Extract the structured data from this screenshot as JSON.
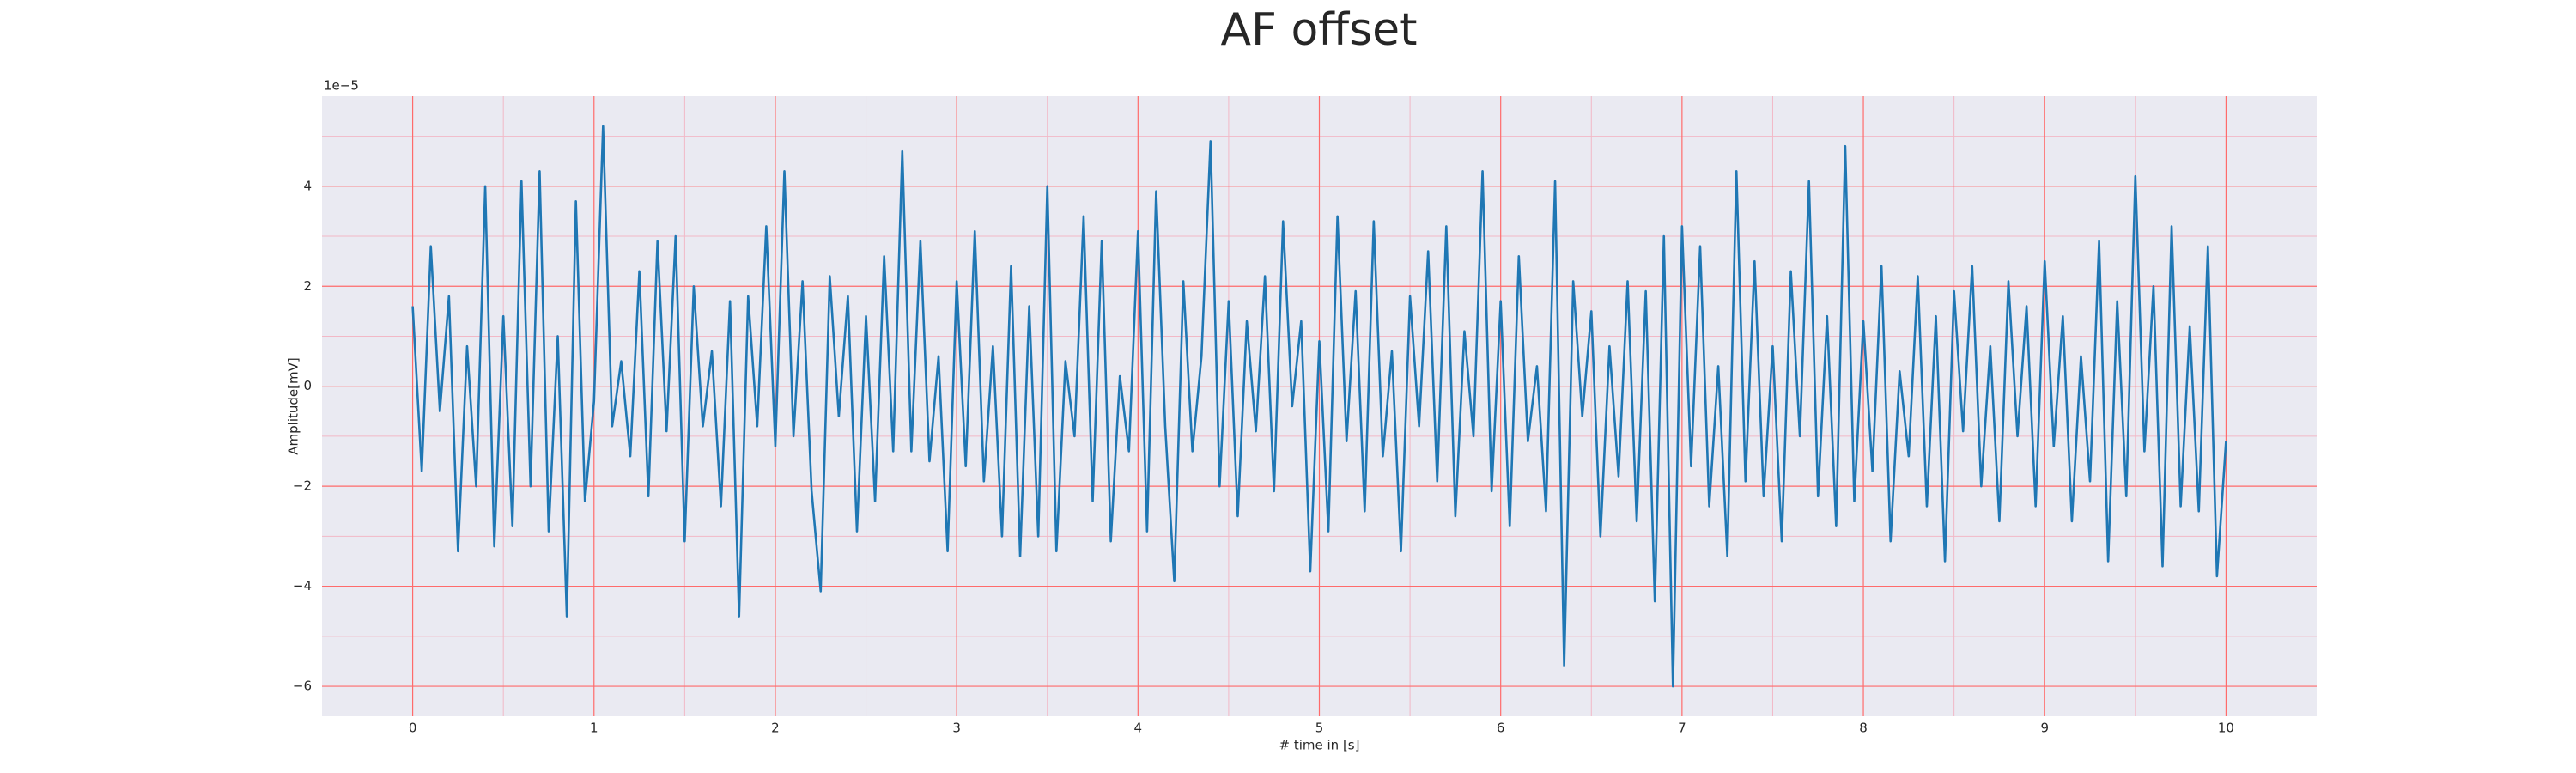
{
  "chart_data": {
    "type": "line",
    "title": "AF offset",
    "xlabel": "# time in [s]",
    "ylabel": "Amplitude[mV]",
    "y_offset_label": "1e−5",
    "color": "#1f77b4",
    "grid_color": "#ff6b6b",
    "minor_grid_color": "#f2b8c6",
    "background": "#eaeaf2",
    "grid": true,
    "x": [
      0,
      0.05,
      0.1,
      0.15,
      0.2,
      0.25,
      0.3,
      0.35,
      0.4,
      0.45,
      0.5,
      0.55,
      0.6,
      0.65,
      0.7,
      0.75,
      0.8,
      0.85,
      0.9,
      0.95,
      1,
      1.05,
      1.1,
      1.15,
      1.2,
      1.25,
      1.3,
      1.35,
      1.4,
      1.45,
      1.5,
      1.55,
      1.6,
      1.65,
      1.7,
      1.75,
      1.8,
      1.85,
      1.9,
      1.95,
      2,
      2.05,
      2.1,
      2.15,
      2.2,
      2.25,
      2.3,
      2.35,
      2.4,
      2.45,
      2.5,
      2.55,
      2.6,
      2.65,
      2.7,
      2.75,
      2.8,
      2.85,
      2.9,
      2.95,
      3,
      3.05,
      3.1,
      3.15,
      3.2,
      3.25,
      3.3,
      3.35,
      3.4,
      3.45,
      3.5,
      3.55,
      3.6,
      3.65,
      3.7,
      3.75,
      3.8,
      3.85,
      3.9,
      3.95,
      4,
      4.05,
      4.1,
      4.15,
      4.2,
      4.25,
      4.3,
      4.35,
      4.4,
      4.45,
      4.5,
      4.55,
      4.6,
      4.65,
      4.7,
      4.75,
      4.8,
      4.85,
      4.9,
      4.95,
      5,
      5.05,
      5.1,
      5.15,
      5.2,
      5.25,
      5.3,
      5.35,
      5.4,
      5.45,
      5.5,
      5.55,
      5.6,
      5.65,
      5.7,
      5.75,
      5.8,
      5.85,
      5.9,
      5.95,
      6,
      6.05,
      6.1,
      6.15,
      6.2,
      6.25,
      6.3,
      6.35,
      6.4,
      6.45,
      6.5,
      6.55,
      6.6,
      6.65,
      6.7,
      6.75,
      6.8,
      6.85,
      6.9,
      6.95,
      7,
      7.05,
      7.1,
      7.15,
      7.2,
      7.25,
      7.3,
      7.35,
      7.4,
      7.45,
      7.5,
      7.55,
      7.6,
      7.65,
      7.7,
      7.75,
      7.8,
      7.85,
      7.9,
      7.95,
      8,
      8.05,
      8.1,
      8.15,
      8.2,
      8.25,
      8.3,
      8.35,
      8.4,
      8.45,
      8.5,
      8.55,
      8.6,
      8.65,
      8.7,
      8.75,
      8.8,
      8.85,
      8.9,
      8.95,
      9,
      9.05,
      9.1,
      9.15,
      9.2,
      9.25,
      9.3,
      9.35,
      9.4,
      9.45,
      9.5,
      9.55,
      9.6,
      9.65,
      9.7,
      9.75,
      9.8,
      9.85,
      9.9,
      9.95,
      10
    ],
    "values": [
      1.6,
      -1.7,
      2.8,
      -0.5,
      1.8,
      -3.3,
      0.8,
      -2.0,
      4.0,
      -3.2,
      1.4,
      -2.8,
      4.1,
      -2.0,
      4.3,
      -2.9,
      1.0,
      -4.6,
      3.7,
      -2.3,
      -0.3,
      5.2,
      -0.8,
      0.5,
      -1.4,
      2.3,
      -2.2,
      2.9,
      -0.9,
      3.0,
      -3.1,
      2.0,
      -0.8,
      0.7,
      -2.4,
      1.7,
      -4.6,
      1.8,
      -0.8,
      3.2,
      -1.2,
      4.3,
      -1.0,
      2.1,
      -2.1,
      -4.1,
      2.2,
      -0.6,
      1.8,
      -2.9,
      1.4,
      -2.3,
      2.6,
      -1.3,
      4.7,
      -1.3,
      2.9,
      -1.5,
      0.6,
      -3.3,
      2.1,
      -1.6,
      3.1,
      -1.9,
      0.8,
      -3.0,
      2.4,
      -3.4,
      1.6,
      -3.0,
      4.0,
      -3.3,
      0.5,
      -1.0,
      3.4,
      -2.3,
      2.9,
      -3.1,
      0.2,
      -1.3,
      3.1,
      -2.9,
      3.9,
      -0.8,
      -3.9,
      2.1,
      -1.3,
      0.6,
      4.9,
      -2.0,
      1.7,
      -2.6,
      1.3,
      -0.9,
      2.2,
      -2.1,
      3.3,
      -0.4,
      1.3,
      -3.7,
      0.9,
      -2.9,
      3.4,
      -1.1,
      1.9,
      -2.5,
      3.3,
      -1.4,
      0.7,
      -3.3,
      1.8,
      -0.8,
      2.7,
      -1.9,
      3.2,
      -2.6,
      1.1,
      -1.0,
      4.3,
      -2.1,
      1.7,
      -2.8,
      2.6,
      -1.1,
      0.4,
      -2.5,
      4.1,
      -5.6,
      2.1,
      -0.6,
      1.5,
      -3.0,
      0.8,
      -1.8,
      2.1,
      -2.7,
      1.9,
      -4.3,
      3.0,
      -6.0,
      3.2,
      -1.6,
      2.8,
      -2.4,
      0.4,
      -3.4,
      4.3,
      -1.9,
      2.5,
      -2.2,
      0.8,
      -3.1,
      2.3,
      -1.0,
      4.1,
      -2.2,
      1.4,
      -2.8,
      4.8,
      -2.3,
      1.3,
      -1.7,
      2.4,
      -3.1,
      0.3,
      -1.4,
      2.2,
      -2.4,
      1.4,
      -3.5,
      1.9,
      -0.9,
      2.4,
      -2.0,
      0.8,
      -2.7,
      2.1,
      -1.0,
      1.6,
      -2.4,
      2.5,
      -1.2,
      1.4,
      -2.7,
      0.6,
      -1.9,
      2.9,
      -3.5,
      1.7,
      -2.2,
      4.2,
      -1.3,
      2.0,
      -3.6,
      3.2,
      -2.4,
      1.2,
      -2.5,
      2.8,
      -3.8,
      -1.1
    ],
    "xlim": [
      -0.5,
      10.5
    ],
    "ylim": [
      -6.6,
      5.8
    ],
    "xticks": [
      0,
      1,
      2,
      3,
      4,
      5,
      6,
      7,
      8,
      9,
      10
    ],
    "yticks": [
      {
        "value": -6,
        "label": "−6"
      },
      {
        "value": -4,
        "label": "−4"
      },
      {
        "value": -2,
        "label": "−2"
      },
      0,
      2,
      4
    ],
    "xminorticks": [
      0.5,
      1.5,
      2.5,
      3.5,
      4.5,
      5.5,
      6.5,
      7.5,
      8.5,
      9.5
    ],
    "yminorticks": [
      -5,
      -3,
      -1,
      1,
      3,
      5
    ]
  }
}
